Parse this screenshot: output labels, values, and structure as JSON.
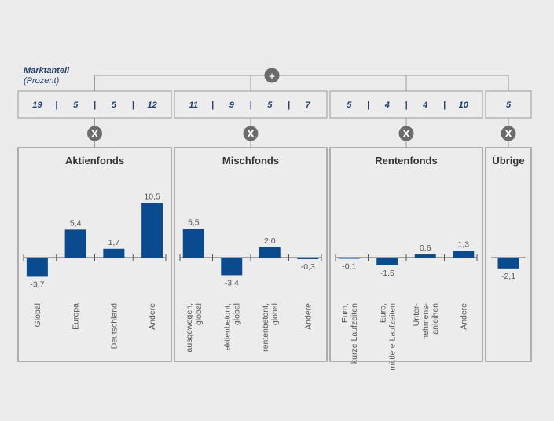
{
  "legend": {
    "title": "Marktanteil",
    "unit": "(Prozent)"
  },
  "symbols": {
    "plus": "+",
    "times": "X"
  },
  "colors": {
    "bar": "#0a4a8f",
    "box_border": "#9a9a9a",
    "circle": "#6b6b6b",
    "text": "#555555"
  },
  "chart_data": {
    "type": "bar",
    "groups": [
      {
        "name": "Aktienfonds",
        "shares": [
          "19",
          "5",
          "5",
          "12"
        ],
        "categories": [
          "Global",
          "Europa",
          "Deutschland",
          "Andere"
        ],
        "values": [
          -3.7,
          5.4,
          1.7,
          10.5
        ],
        "labels": [
          "-3,7",
          "5,4",
          "1,7",
          "10,5"
        ]
      },
      {
        "name": "Mischfonds",
        "shares": [
          "11",
          "9",
          "5",
          "7"
        ],
        "categories": [
          "ausgewogen, global",
          "aktienbetont, global",
          "rentenbetont, global",
          "Andere"
        ],
        "values": [
          5.5,
          -3.4,
          2.0,
          -0.3
        ],
        "labels": [
          "5,5",
          "-3,4",
          "2,0",
          "-0,3"
        ]
      },
      {
        "name": "Rentenfonds",
        "shares": [
          "5",
          "4",
          "4",
          "10"
        ],
        "categories": [
          "Euro, kurze Laufzeiten",
          "Euro, mittlere Laufzeiten",
          "Unter-nehmens-anleihen",
          "Andere"
        ],
        "values": [
          -0.1,
          -1.5,
          0.6,
          1.3
        ],
        "labels": [
          "-0,1",
          "-1,5",
          "0,6",
          "1,3"
        ]
      },
      {
        "name": "Übrige",
        "shares": [
          "5"
        ],
        "categories": [
          ""
        ],
        "values": [
          -2.1
        ],
        "labels": [
          "-2,1"
        ]
      }
    ]
  }
}
